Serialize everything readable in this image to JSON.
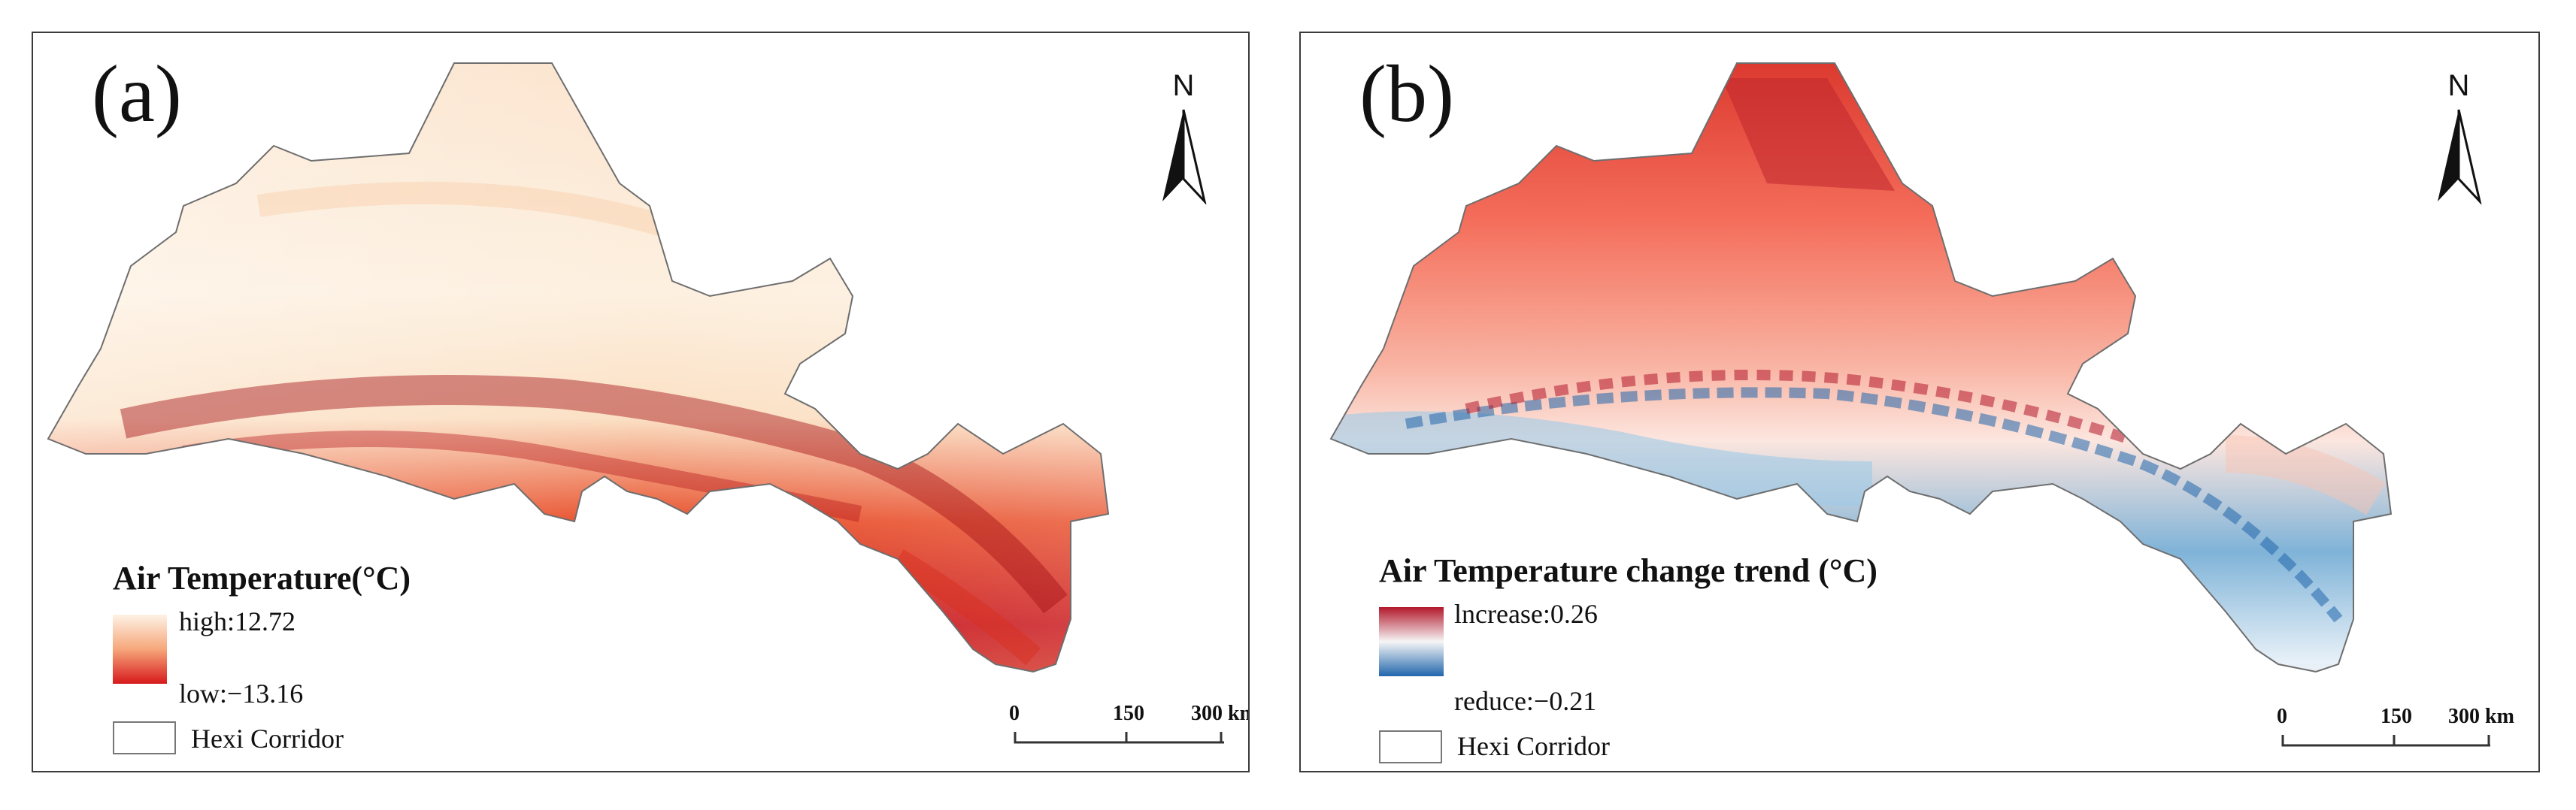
{
  "panels": {
    "a": {
      "label": "(a)",
      "north": "N",
      "legend": {
        "title": "Air Temperature(°C)",
        "high_label": "high:12.72",
        "low_label": "low:−13.16",
        "boundary_label": "Hexi Corridor",
        "ramp_colors": [
          "#fdf2e6",
          "#f6a77a",
          "#d7191c"
        ]
      },
      "scale": {
        "ticks": [
          "0",
          "150",
          "300 km"
        ]
      }
    },
    "b": {
      "label": "(b)",
      "north": "N",
      "legend": {
        "title": "Air Temperature change trend (°C)",
        "high_label": "lncrease:0.26",
        "low_label": "reduce:−0.21",
        "boundary_label": "Hexi Corridor",
        "ramp_colors": [
          "#b2182b",
          "#f6f6f6",
          "#2166ac"
        ]
      },
      "scale": {
        "ticks": [
          "0",
          "150",
          "300 km"
        ]
      }
    }
  }
}
